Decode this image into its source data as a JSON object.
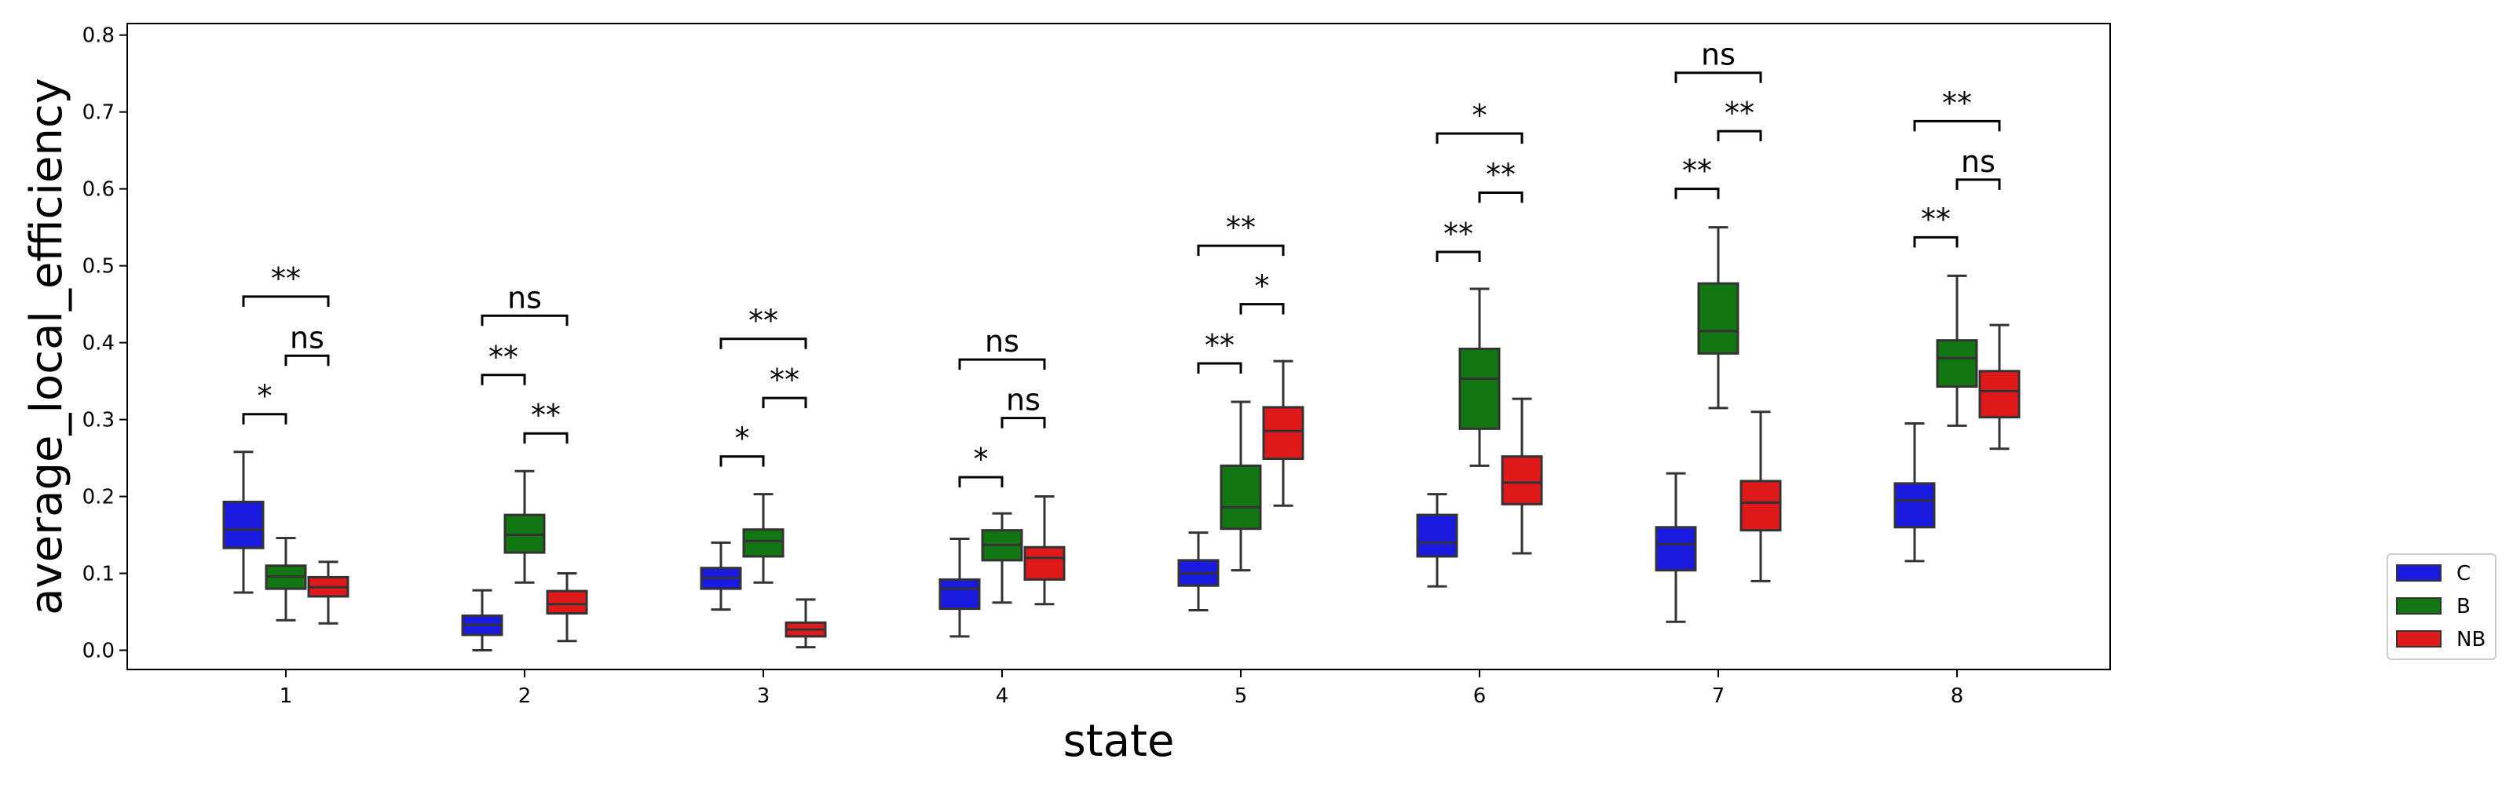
{
  "chart_data": {
    "type": "box",
    "xlabel": "state",
    "ylabel": "average_local_efficiency",
    "categories": [
      "1",
      "2",
      "3",
      "4",
      "5",
      "6",
      "7",
      "8"
    ],
    "ylim": [
      -0.025,
      0.815
    ],
    "yticks": [
      "0.0",
      "0.1",
      "0.2",
      "0.3",
      "0.4",
      "0.5",
      "0.6",
      "0.7",
      "0.8"
    ],
    "grid": false,
    "legend_position": "outside-right-bottom",
    "series": [
      {
        "name": "C",
        "color": "#1a1ae0",
        "boxes": [
          {
            "whislo": 0.075,
            "q1": 0.133,
            "med": 0.157,
            "q3": 0.193,
            "whishi": 0.258
          },
          {
            "whislo": 0.0,
            "q1": 0.02,
            "med": 0.033,
            "q3": 0.045,
            "whishi": 0.078
          },
          {
            "whislo": 0.053,
            "q1": 0.08,
            "med": 0.094,
            "q3": 0.107,
            "whishi": 0.14
          },
          {
            "whislo": 0.018,
            "q1": 0.054,
            "med": 0.08,
            "q3": 0.092,
            "whishi": 0.145
          },
          {
            "whislo": 0.052,
            "q1": 0.084,
            "med": 0.1,
            "q3": 0.117,
            "whishi": 0.153
          },
          {
            "whislo": 0.083,
            "q1": 0.122,
            "med": 0.14,
            "q3": 0.176,
            "whishi": 0.203
          },
          {
            "whislo": 0.037,
            "q1": 0.104,
            "med": 0.138,
            "q3": 0.16,
            "whishi": 0.23
          },
          {
            "whislo": 0.116,
            "q1": 0.16,
            "med": 0.195,
            "q3": 0.217,
            "whishi": 0.295
          }
        ]
      },
      {
        "name": "B",
        "color": "#127712",
        "boxes": [
          {
            "whislo": 0.039,
            "q1": 0.08,
            "med": 0.096,
            "q3": 0.11,
            "whishi": 0.146
          },
          {
            "whislo": 0.088,
            "q1": 0.127,
            "med": 0.15,
            "q3": 0.176,
            "whishi": 0.233
          },
          {
            "whislo": 0.088,
            "q1": 0.122,
            "med": 0.142,
            "q3": 0.157,
            "whishi": 0.203
          },
          {
            "whislo": 0.062,
            "q1": 0.117,
            "med": 0.137,
            "q3": 0.156,
            "whishi": 0.178
          },
          {
            "whislo": 0.104,
            "q1": 0.158,
            "med": 0.186,
            "q3": 0.24,
            "whishi": 0.323
          },
          {
            "whislo": 0.24,
            "q1": 0.288,
            "med": 0.353,
            "q3": 0.392,
            "whishi": 0.47
          },
          {
            "whislo": 0.315,
            "q1": 0.386,
            "med": 0.415,
            "q3": 0.477,
            "whishi": 0.55
          },
          {
            "whislo": 0.292,
            "q1": 0.343,
            "med": 0.38,
            "q3": 0.403,
            "whishi": 0.487
          }
        ]
      },
      {
        "name": "NB",
        "color": "#e01a1a",
        "boxes": [
          {
            "whislo": 0.035,
            "q1": 0.07,
            "med": 0.082,
            "q3": 0.095,
            "whishi": 0.115
          },
          {
            "whislo": 0.012,
            "q1": 0.048,
            "med": 0.06,
            "q3": 0.077,
            "whishi": 0.1
          },
          {
            "whislo": 0.004,
            "q1": 0.018,
            "med": 0.027,
            "q3": 0.036,
            "whishi": 0.066
          },
          {
            "whislo": 0.06,
            "q1": 0.092,
            "med": 0.12,
            "q3": 0.134,
            "whishi": 0.2
          },
          {
            "whislo": 0.188,
            "q1": 0.249,
            "med": 0.285,
            "q3": 0.316,
            "whishi": 0.376
          },
          {
            "whislo": 0.126,
            "q1": 0.19,
            "med": 0.218,
            "q3": 0.252,
            "whishi": 0.327
          },
          {
            "whislo": 0.09,
            "q1": 0.156,
            "med": 0.192,
            "q3": 0.22,
            "whishi": 0.31
          },
          {
            "whislo": 0.262,
            "q1": 0.303,
            "med": 0.337,
            "q3": 0.363,
            "whishi": 0.423
          }
        ]
      }
    ],
    "annotations": [
      {
        "category": 0,
        "from": 0,
        "to": 1,
        "y": 0.307,
        "label": "*"
      },
      {
        "category": 0,
        "from": 1,
        "to": 2,
        "y": 0.383,
        "label": "ns"
      },
      {
        "category": 0,
        "from": 0,
        "to": 2,
        "y": 0.46,
        "label": "**"
      },
      {
        "category": 1,
        "from": 0,
        "to": 1,
        "y": 0.358,
        "label": "**"
      },
      {
        "category": 1,
        "from": 1,
        "to": 2,
        "y": 0.282,
        "label": "**"
      },
      {
        "category": 1,
        "from": 0,
        "to": 2,
        "y": 0.435,
        "label": "ns"
      },
      {
        "category": 2,
        "from": 0,
        "to": 1,
        "y": 0.252,
        "label": "*"
      },
      {
        "category": 2,
        "from": 1,
        "to": 2,
        "y": 0.328,
        "label": "**"
      },
      {
        "category": 2,
        "from": 0,
        "to": 2,
        "y": 0.405,
        "label": "**"
      },
      {
        "category": 3,
        "from": 0,
        "to": 1,
        "y": 0.225,
        "label": "*"
      },
      {
        "category": 3,
        "from": 1,
        "to": 2,
        "y": 0.302,
        "label": "ns"
      },
      {
        "category": 3,
        "from": 0,
        "to": 2,
        "y": 0.378,
        "label": "ns"
      },
      {
        "category": 4,
        "from": 0,
        "to": 1,
        "y": 0.373,
        "label": "**"
      },
      {
        "category": 4,
        "from": 1,
        "to": 2,
        "y": 0.45,
        "label": "*"
      },
      {
        "category": 4,
        "from": 0,
        "to": 2,
        "y": 0.526,
        "label": "**"
      },
      {
        "category": 5,
        "from": 0,
        "to": 1,
        "y": 0.518,
        "label": "**"
      },
      {
        "category": 5,
        "from": 1,
        "to": 2,
        "y": 0.595,
        "label": "**"
      },
      {
        "category": 5,
        "from": 0,
        "to": 2,
        "y": 0.672,
        "label": "*"
      },
      {
        "category": 6,
        "from": 0,
        "to": 1,
        "y": 0.6,
        "label": "**"
      },
      {
        "category": 6,
        "from": 1,
        "to": 2,
        "y": 0.675,
        "label": "**"
      },
      {
        "category": 6,
        "from": 0,
        "to": 2,
        "y": 0.751,
        "label": "ns"
      },
      {
        "category": 7,
        "from": 0,
        "to": 1,
        "y": 0.537,
        "label": "**"
      },
      {
        "category": 7,
        "from": 1,
        "to": 2,
        "y": 0.612,
        "label": "ns"
      },
      {
        "category": 7,
        "from": 0,
        "to": 2,
        "y": 0.688,
        "label": "**"
      }
    ]
  }
}
